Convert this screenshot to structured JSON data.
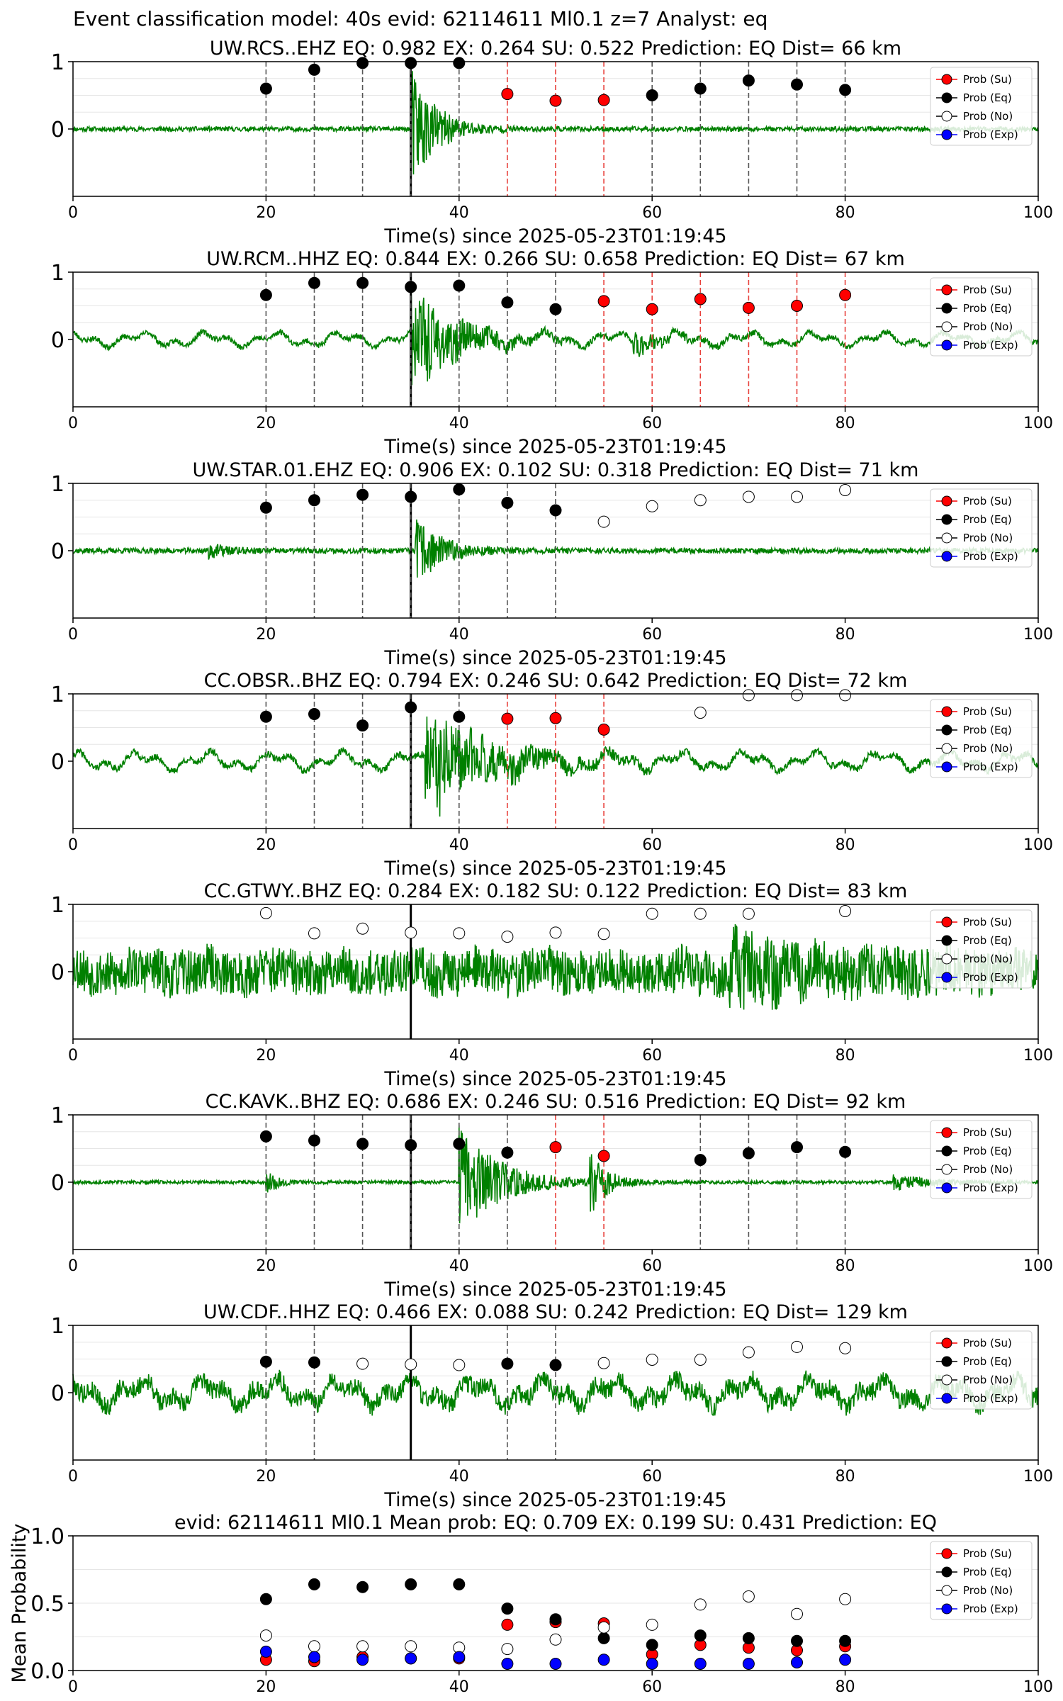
{
  "suptitle": "Event classification model: 40s evid: 62114611 Ml0.1 z=7 Analyst: eq",
  "xlabel": "Time(s) since 2025-05-23T01:19:45",
  "legend_entries": [
    "Prob (Su)",
    "Prob (Eq)",
    "Prob (No)",
    "Prob (Exp)"
  ],
  "colors": {
    "waveform": "#008000",
    "su": "#ff0000",
    "eq": "#000000",
    "no": "#ffffff",
    "exp": "#0000ff",
    "eq_line": "#555555",
    "su_line": "#e8413c"
  },
  "chart_data": [
    {
      "type": "scatter",
      "title": "UW.RCS..EHZ   EQ: 0.982  EX: 0.264  SU: 0.522   Prediction: EQ    Dist= 66 km",
      "xlabel": "Time(s) since 2025-05-23T01:19:45",
      "xlim": [
        0,
        100
      ],
      "ylim": [
        -1,
        1
      ],
      "xticks": [
        "0",
        "20",
        "40",
        "60",
        "80",
        "100"
      ],
      "yticks": [
        "1",
        "0"
      ],
      "pick_time": 35,
      "waveform": {
        "seed": 11,
        "noise": 0.035,
        "lowfreq": 0.0,
        "events": [
          {
            "t": 35,
            "amp": 0.95,
            "decay": 2.5
          }
        ]
      },
      "x": [
        20,
        25,
        30,
        35,
        40,
        45,
        50,
        55,
        60,
        65,
        70,
        75,
        80
      ],
      "prob": [
        0.6,
        0.88,
        0.98,
        0.98,
        0.98,
        0.52,
        0.42,
        0.43,
        0.5,
        0.6,
        0.72,
        0.66,
        0.58
      ],
      "class": [
        "eq",
        "eq",
        "eq",
        "eq",
        "eq",
        "su",
        "su",
        "su",
        "eq",
        "eq",
        "eq",
        "eq",
        "eq"
      ],
      "legend": [
        "Prob (Su)",
        "Prob (Eq)",
        "Prob (No)",
        "Prob (Exp)"
      ]
    },
    {
      "type": "scatter",
      "title": "UW.RCM..HHZ   EQ: 0.844  EX: 0.266  SU: 0.658   Prediction: EQ    Dist= 67 km",
      "xlabel": "Time(s) since 2025-05-23T01:19:45",
      "xlim": [
        0,
        100
      ],
      "ylim": [
        -1,
        1
      ],
      "xticks": [
        "0",
        "20",
        "40",
        "60",
        "80",
        "100"
      ],
      "yticks": [
        "1",
        "0"
      ],
      "pick_time": 35,
      "waveform": {
        "seed": 23,
        "noise": 0.04,
        "lowfreq": 0.12,
        "events": [
          {
            "t": 35,
            "amp": 0.85,
            "decay": 4
          },
          {
            "t": 58,
            "amp": 0.18,
            "decay": 3
          }
        ]
      },
      "x": [
        20,
        25,
        30,
        35,
        40,
        45,
        50,
        55,
        60,
        65,
        70,
        75,
        80
      ],
      "prob": [
        0.66,
        0.84,
        0.84,
        0.78,
        0.8,
        0.55,
        0.45,
        0.57,
        0.45,
        0.6,
        0.47,
        0.5,
        0.66
      ],
      "class": [
        "eq",
        "eq",
        "eq",
        "eq",
        "eq",
        "eq",
        "eq",
        "su",
        "su",
        "su",
        "su",
        "su",
        "su"
      ],
      "legend": [
        "Prob (Su)",
        "Prob (Eq)",
        "Prob (No)",
        "Prob (Exp)"
      ]
    },
    {
      "type": "scatter",
      "title": "UW.STAR.01.EHZ   EQ: 0.906  EX: 0.102  SU: 0.318   Prediction: EQ    Dist= 71 km",
      "xlabel": "Time(s) since 2025-05-23T01:19:45",
      "xlim": [
        0,
        100
      ],
      "ylim": [
        -1,
        1
      ],
      "xticks": [
        "0",
        "20",
        "40",
        "60",
        "80",
        "100"
      ],
      "yticks": [
        "1",
        "0"
      ],
      "pick_time": 35,
      "waveform": {
        "seed": 37,
        "noise": 0.04,
        "lowfreq": 0.0,
        "events": [
          {
            "t": 35.5,
            "amp": 0.55,
            "decay": 2.5
          },
          {
            "t": 14,
            "amp": 0.1,
            "decay": 2
          }
        ]
      },
      "x": [
        20,
        25,
        30,
        35,
        40,
        45,
        50,
        55,
        60,
        65,
        70,
        75,
        80
      ],
      "prob": [
        0.64,
        0.75,
        0.83,
        0.8,
        0.91,
        0.71,
        0.6,
        0.43,
        0.66,
        0.75,
        0.8,
        0.8,
        0.9
      ],
      "class": [
        "eq",
        "eq",
        "eq",
        "eq",
        "eq",
        "eq",
        "eq",
        "no",
        "no",
        "no",
        "no",
        "no",
        "no"
      ],
      "legend": [
        "Prob (Su)",
        "Prob (Eq)",
        "Prob (No)",
        "Prob (Exp)"
      ]
    },
    {
      "type": "scatter",
      "title": "CC.OBSR..BHZ   EQ: 0.794  EX: 0.246  SU: 0.642   Prediction: EQ    Dist= 72 km",
      "xlabel": "Time(s) since 2025-05-23T01:19:45",
      "xlim": [
        0,
        100
      ],
      "ylim": [
        -1,
        1
      ],
      "xticks": [
        "0",
        "20",
        "40",
        "60",
        "80",
        "100"
      ],
      "yticks": [
        "1",
        "0"
      ],
      "pick_time": 35,
      "waveform": {
        "seed": 41,
        "noise": 0.05,
        "lowfreq": 0.15,
        "events": [
          {
            "t": 36.5,
            "amp": 0.85,
            "decay": 6
          }
        ]
      },
      "x": [
        20,
        25,
        30,
        35,
        40,
        45,
        50,
        55,
        65,
        70,
        75,
        80
      ],
      "prob": [
        0.66,
        0.7,
        0.53,
        0.8,
        0.66,
        0.63,
        0.64,
        0.47,
        0.72,
        0.98,
        0.98,
        0.98
      ],
      "class": [
        "eq",
        "eq",
        "eq",
        "eq",
        "eq",
        "su",
        "su",
        "su",
        "no",
        "no",
        "no",
        "no"
      ],
      "legend": [
        "Prob (Su)",
        "Prob (Eq)",
        "Prob (No)",
        "Prob (Exp)"
      ]
    },
    {
      "type": "scatter",
      "title": "CC.GTWY..BHZ   EQ: 0.284  EX: 0.182  SU: 0.122   Prediction: EQ    Dist= 83 km",
      "xlabel": "Time(s) since 2025-05-23T01:19:45",
      "xlim": [
        0,
        100
      ],
      "ylim": [
        -1,
        1
      ],
      "xticks": [
        "0",
        "20",
        "40",
        "60",
        "80",
        "100"
      ],
      "yticks": [
        "1",
        "0"
      ],
      "pick_time": 35,
      "waveform": {
        "seed": 53,
        "noise": 0.34,
        "lowfreq": 0.08,
        "events": [
          {
            "t": 68,
            "amp": 0.35,
            "decay": 8
          }
        ]
      },
      "x": [
        20,
        25,
        30,
        35,
        40,
        45,
        50,
        55,
        60,
        65,
        70,
        80
      ],
      "prob": [
        0.87,
        0.57,
        0.64,
        0.58,
        0.57,
        0.52,
        0.58,
        0.56,
        0.86,
        0.86,
        0.86,
        0.9
      ],
      "class": [
        "no",
        "no",
        "no",
        "no",
        "no",
        "no",
        "no",
        "no",
        "no",
        "no",
        "no",
        "no"
      ],
      "legend": [
        "Prob (Su)",
        "Prob (Eq)",
        "Prob (No)",
        "Prob (Exp)"
      ]
    },
    {
      "type": "scatter",
      "title": "CC.KAVK..BHZ   EQ: 0.686  EX: 0.246  SU: 0.516   Prediction: EQ    Dist= 92 km",
      "xlabel": "Time(s) since 2025-05-23T01:19:45",
      "xlim": [
        0,
        100
      ],
      "ylim": [
        -1,
        1
      ],
      "xticks": [
        "0",
        "20",
        "40",
        "60",
        "80",
        "100"
      ],
      "yticks": [
        "1",
        "0"
      ],
      "pick_time": 35,
      "waveform": {
        "seed": 67,
        "noise": 0.025,
        "lowfreq": 0.0,
        "events": [
          {
            "t": 40,
            "amp": 0.85,
            "decay": 4
          },
          {
            "t": 53.5,
            "amp": 0.55,
            "decay": 1.5
          },
          {
            "t": 20,
            "amp": 0.18,
            "decay": 1.2
          },
          {
            "t": 85,
            "amp": 0.12,
            "decay": 3
          }
        ]
      },
      "x": [
        20,
        25,
        30,
        35,
        40,
        45,
        50,
        55,
        65,
        70,
        75,
        80
      ],
      "prob": [
        0.68,
        0.62,
        0.57,
        0.55,
        0.57,
        0.44,
        0.52,
        0.39,
        0.33,
        0.43,
        0.52,
        0.45
      ],
      "class": [
        "eq",
        "eq",
        "eq",
        "eq",
        "eq",
        "eq",
        "su",
        "su",
        "eq",
        "eq",
        "eq",
        "eq"
      ],
      "legend": [
        "Prob (Su)",
        "Prob (Eq)",
        "Prob (No)",
        "Prob (Exp)"
      ]
    },
    {
      "type": "scatter",
      "title": "UW.CDF..HHZ   EQ: 0.466  EX: 0.088  SU: 0.242   Prediction: EQ    Dist= 129 km",
      "xlabel": "Time(s) since 2025-05-23T01:19:45",
      "xlim": [
        0,
        100
      ],
      "ylim": [
        -1,
        1
      ],
      "xticks": [
        "0",
        "20",
        "40",
        "60",
        "80",
        "100"
      ],
      "yticks": [
        "1",
        "0"
      ],
      "pick_time": 35,
      "waveform": {
        "seed": 79,
        "noise": 0.14,
        "lowfreq": 0.22,
        "events": []
      },
      "x": [
        20,
        25,
        30,
        35,
        40,
        45,
        50,
        55,
        60,
        65,
        70,
        75,
        80
      ],
      "prob": [
        0.46,
        0.45,
        0.43,
        0.42,
        0.41,
        0.43,
        0.41,
        0.44,
        0.49,
        0.49,
        0.6,
        0.68,
        0.66
      ],
      "class": [
        "eq",
        "eq",
        "no",
        "no",
        "no",
        "eq",
        "eq",
        "no",
        "no",
        "no",
        "no",
        "no",
        "no"
      ],
      "legend": [
        "Prob (Su)",
        "Prob (Eq)",
        "Prob (No)",
        "Prob (Exp)"
      ]
    },
    {
      "type": "scatter",
      "title": "evid: 62114611  Ml0.1   Mean prob:   EQ: 0.709  EX: 0.199  SU: 0.431   Prediction: EQ",
      "ylabel": "Mean Probability",
      "xlim": [
        0,
        100
      ],
      "ylim": [
        0,
        1
      ],
      "xticks": [
        "0",
        "20",
        "40",
        "60",
        "80",
        "100"
      ],
      "yticks": [
        "1.0",
        "0.5",
        "0.0"
      ],
      "x": [
        20,
        25,
        30,
        35,
        40,
        45,
        50,
        55,
        60,
        65,
        70,
        75,
        80
      ],
      "series": [
        {
          "name": "Prob (Su)",
          "values": [
            0.08,
            0.07,
            0.1,
            0.09,
            0.09,
            0.34,
            0.36,
            0.35,
            0.12,
            0.19,
            0.17,
            0.15,
            0.18
          ]
        },
        {
          "name": "Prob (Eq)",
          "values": [
            0.53,
            0.64,
            0.62,
            0.64,
            0.64,
            0.46,
            0.38,
            0.24,
            0.19,
            0.26,
            0.24,
            0.22,
            0.22
          ]
        },
        {
          "name": "Prob (No)",
          "values": [
            0.26,
            0.18,
            0.18,
            0.18,
            0.17,
            0.16,
            0.23,
            0.32,
            0.34,
            0.49,
            0.55,
            0.42,
            0.53
          ]
        },
        {
          "name": "Prob (Exp)",
          "values": [
            0.14,
            0.1,
            0.08,
            0.09,
            0.1,
            0.05,
            0.05,
            0.08,
            0.05,
            0.05,
            0.05,
            0.06,
            0.08
          ]
        }
      ],
      "legend": [
        "Prob (Su)",
        "Prob (Eq)",
        "Prob (No)",
        "Prob (Exp)"
      ]
    }
  ]
}
